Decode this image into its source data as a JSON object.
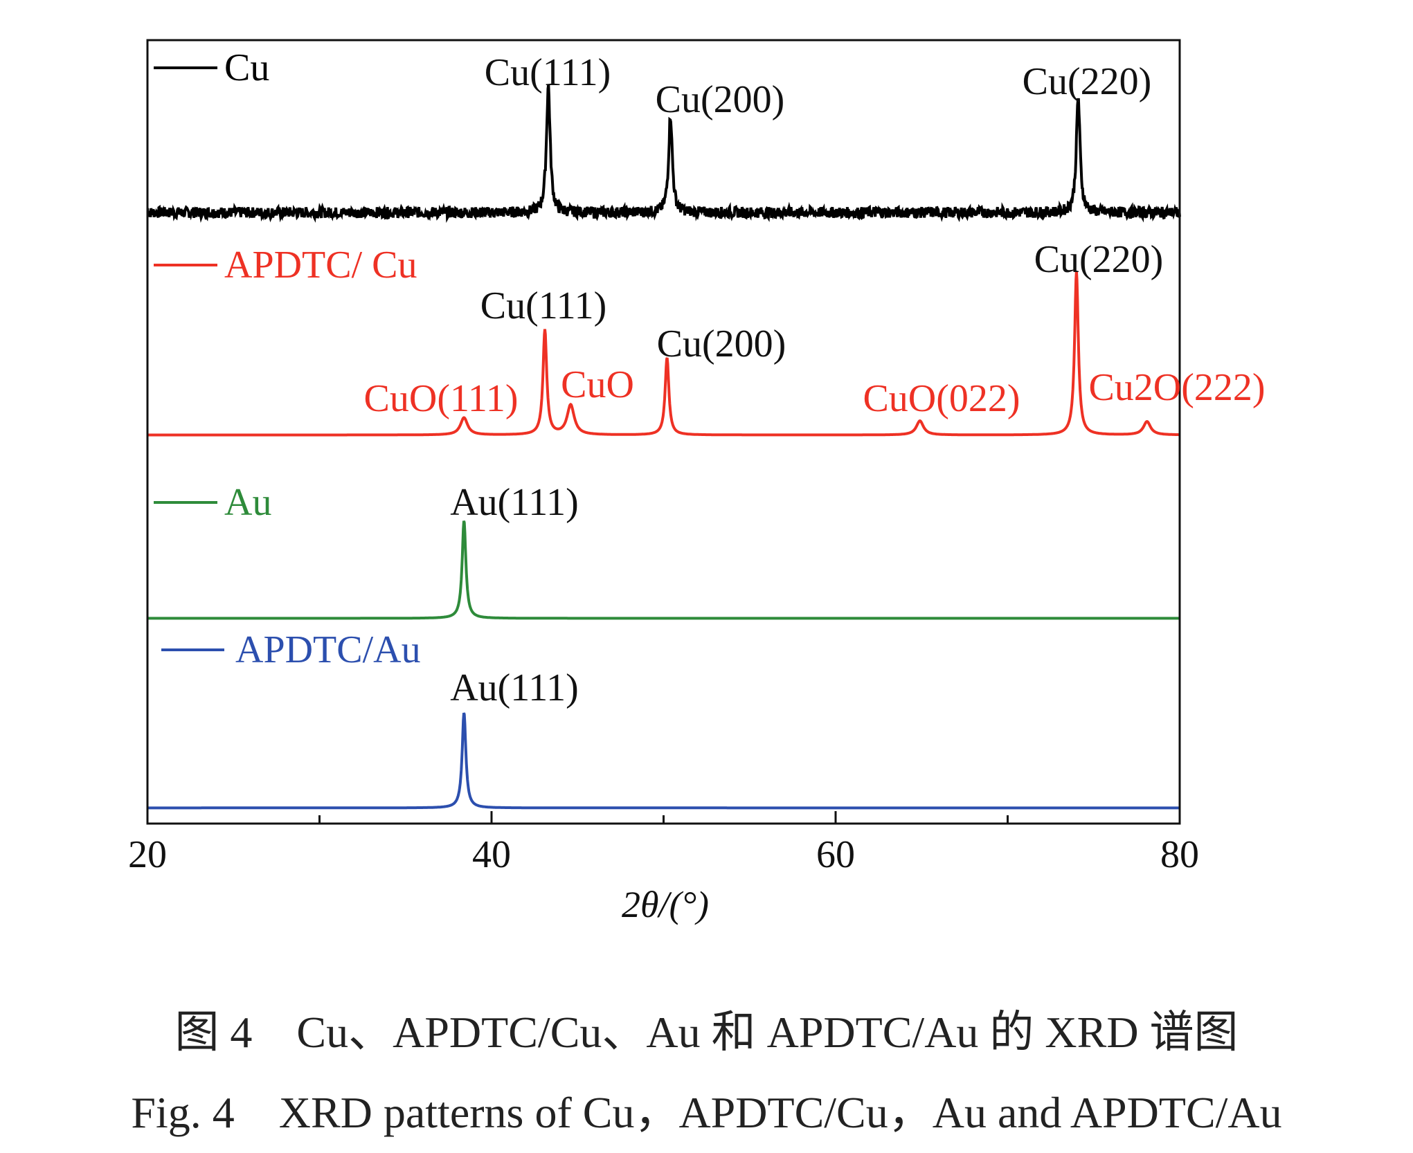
{
  "chart_data": {
    "type": "line",
    "title": "",
    "xlabel": "2θ/(°)",
    "ylabel": "",
    "xlim": [
      20,
      80
    ],
    "ylim": [
      0,
      100
    ],
    "xticks": [
      "20",
      "40",
      "60",
      "80"
    ],
    "minor_xticks": [
      30,
      50,
      70
    ],
    "grid": false,
    "legend_placement": "inline-left",
    "series": [
      {
        "name": "Cu",
        "color": "#000000",
        "baseline": 78,
        "noisy": true,
        "peaks": [
          {
            "x": 43.3,
            "y": 94.2,
            "label": "Cu(111)"
          },
          {
            "x": 50.4,
            "y": 90.4,
            "label": "Cu(200)"
          },
          {
            "x": 74.1,
            "y": 92.7,
            "label": "Cu(220)"
          }
        ]
      },
      {
        "name": "APDTC/ Cu",
        "color": "#ee3124",
        "baseline": 49.6,
        "noisy": false,
        "peaks": [
          {
            "x": 38.4,
            "y": 51.8,
            "label": "CuO(111)"
          },
          {
            "x": 43.1,
            "y": 63,
            "label": "Cu(111)"
          },
          {
            "x": 44.6,
            "y": 53.4,
            "label": "CuO"
          },
          {
            "x": 50.2,
            "y": 59.5,
            "label": "Cu(200)"
          },
          {
            "x": 64.9,
            "y": 51.4,
            "label": "CuO(022)"
          },
          {
            "x": 74.0,
            "y": 70.5,
            "label": "Cu(220)"
          },
          {
            "x": 78.1,
            "y": 51.3,
            "label": "Cu2O(222)"
          }
        ]
      },
      {
        "name": "Au",
        "color": "#2e8b3a",
        "baseline": 26.2,
        "noisy": false,
        "peaks": [
          {
            "x": 38.4,
            "y": 38.7,
            "label": "Au(111)"
          }
        ]
      },
      {
        "name": "APDTC/Au",
        "color": "#2c4fae",
        "baseline": 2,
        "noisy": false,
        "peaks": [
          {
            "x": 38.4,
            "y": 14.2,
            "label": "Au(111)"
          }
        ]
      }
    ]
  },
  "caption": {
    "zh": "图 4　Cu、APDTC/Cu、Au 和 APDTC/Au 的 XRD 谱图",
    "en": "Fig. 4　XRD patterns of Cu，APDTC/Cu，Au and APDTC/Au"
  }
}
